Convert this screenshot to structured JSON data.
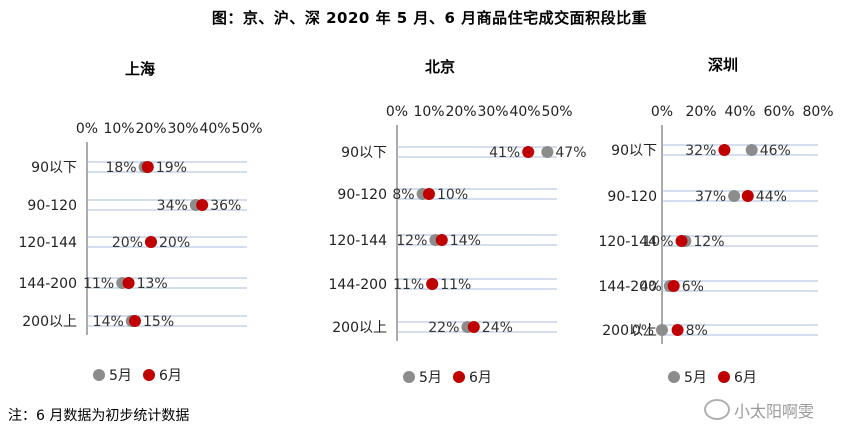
{
  "title": "图：京、沪、深 2020 年 5 月、6 月商品住宅成交面积段比重",
  "footnote": "注：6 月数据为初步统计数据",
  "watermark": "小太阳啊雯",
  "colors": {
    "may": "#8c8c8c",
    "june": "#c00000",
    "gridline": "#a8bedc"
  },
  "chart_data": [
    {
      "type": "scatter",
      "title": "上海",
      "categories": [
        "90以下",
        "90-120",
        "120-144",
        "144-200",
        "200以上"
      ],
      "xlim": [
        0,
        50
      ],
      "xticks": [
        "0%",
        "10%",
        "20%",
        "30%",
        "40%",
        "50%"
      ],
      "series": [
        {
          "name": "5月",
          "values": [
            18,
            34,
            20,
            11,
            14
          ],
          "labels": [
            "18%",
            "34%",
            "20%",
            "11%",
            "14%"
          ]
        },
        {
          "name": "6月",
          "values": [
            19,
            36,
            20,
            13,
            15
          ],
          "labels": [
            "19%",
            "36%",
            "20%",
            "13%",
            "15%"
          ]
        }
      ],
      "legend": "bottom-left"
    },
    {
      "type": "scatter",
      "title": "北京",
      "categories": [
        "90以下",
        "90-120",
        "120-144",
        "144-200",
        "200以上"
      ],
      "xlim": [
        0,
        50
      ],
      "xticks": [
        "0%",
        "10%",
        "20%",
        "30%",
        "40%",
        "50%"
      ],
      "series": [
        {
          "name": "5月",
          "values": [
            47,
            8,
            12,
            11,
            22
          ],
          "labels": [
            "47%",
            "8%",
            "12%",
            "11%",
            "22%"
          ]
        },
        {
          "name": "6月",
          "values": [
            41,
            10,
            14,
            11,
            24
          ],
          "labels": [
            "41%",
            "10%",
            "14%",
            "11%",
            "24%"
          ]
        }
      ],
      "legend": "bottom-left"
    },
    {
      "type": "scatter",
      "title": "深圳",
      "categories": [
        "90以下",
        "90-120",
        "120-144",
        "144-200",
        "200以上"
      ],
      "xlim": [
        0,
        80
      ],
      "xticks": [
        "0%",
        "20%",
        "40%",
        "60%",
        "80%"
      ],
      "series": [
        {
          "name": "5月",
          "values": [
            46,
            37,
            12,
            4,
            0
          ],
          "labels": [
            "46%",
            "37%",
            "12%",
            "4%",
            "0%"
          ]
        },
        {
          "name": "6月",
          "values": [
            32,
            44,
            10,
            6,
            8
          ],
          "labels": [
            "32%",
            "44%",
            "10%",
            "6%",
            "8%"
          ]
        }
      ],
      "legend": "bottom-left"
    }
  ]
}
